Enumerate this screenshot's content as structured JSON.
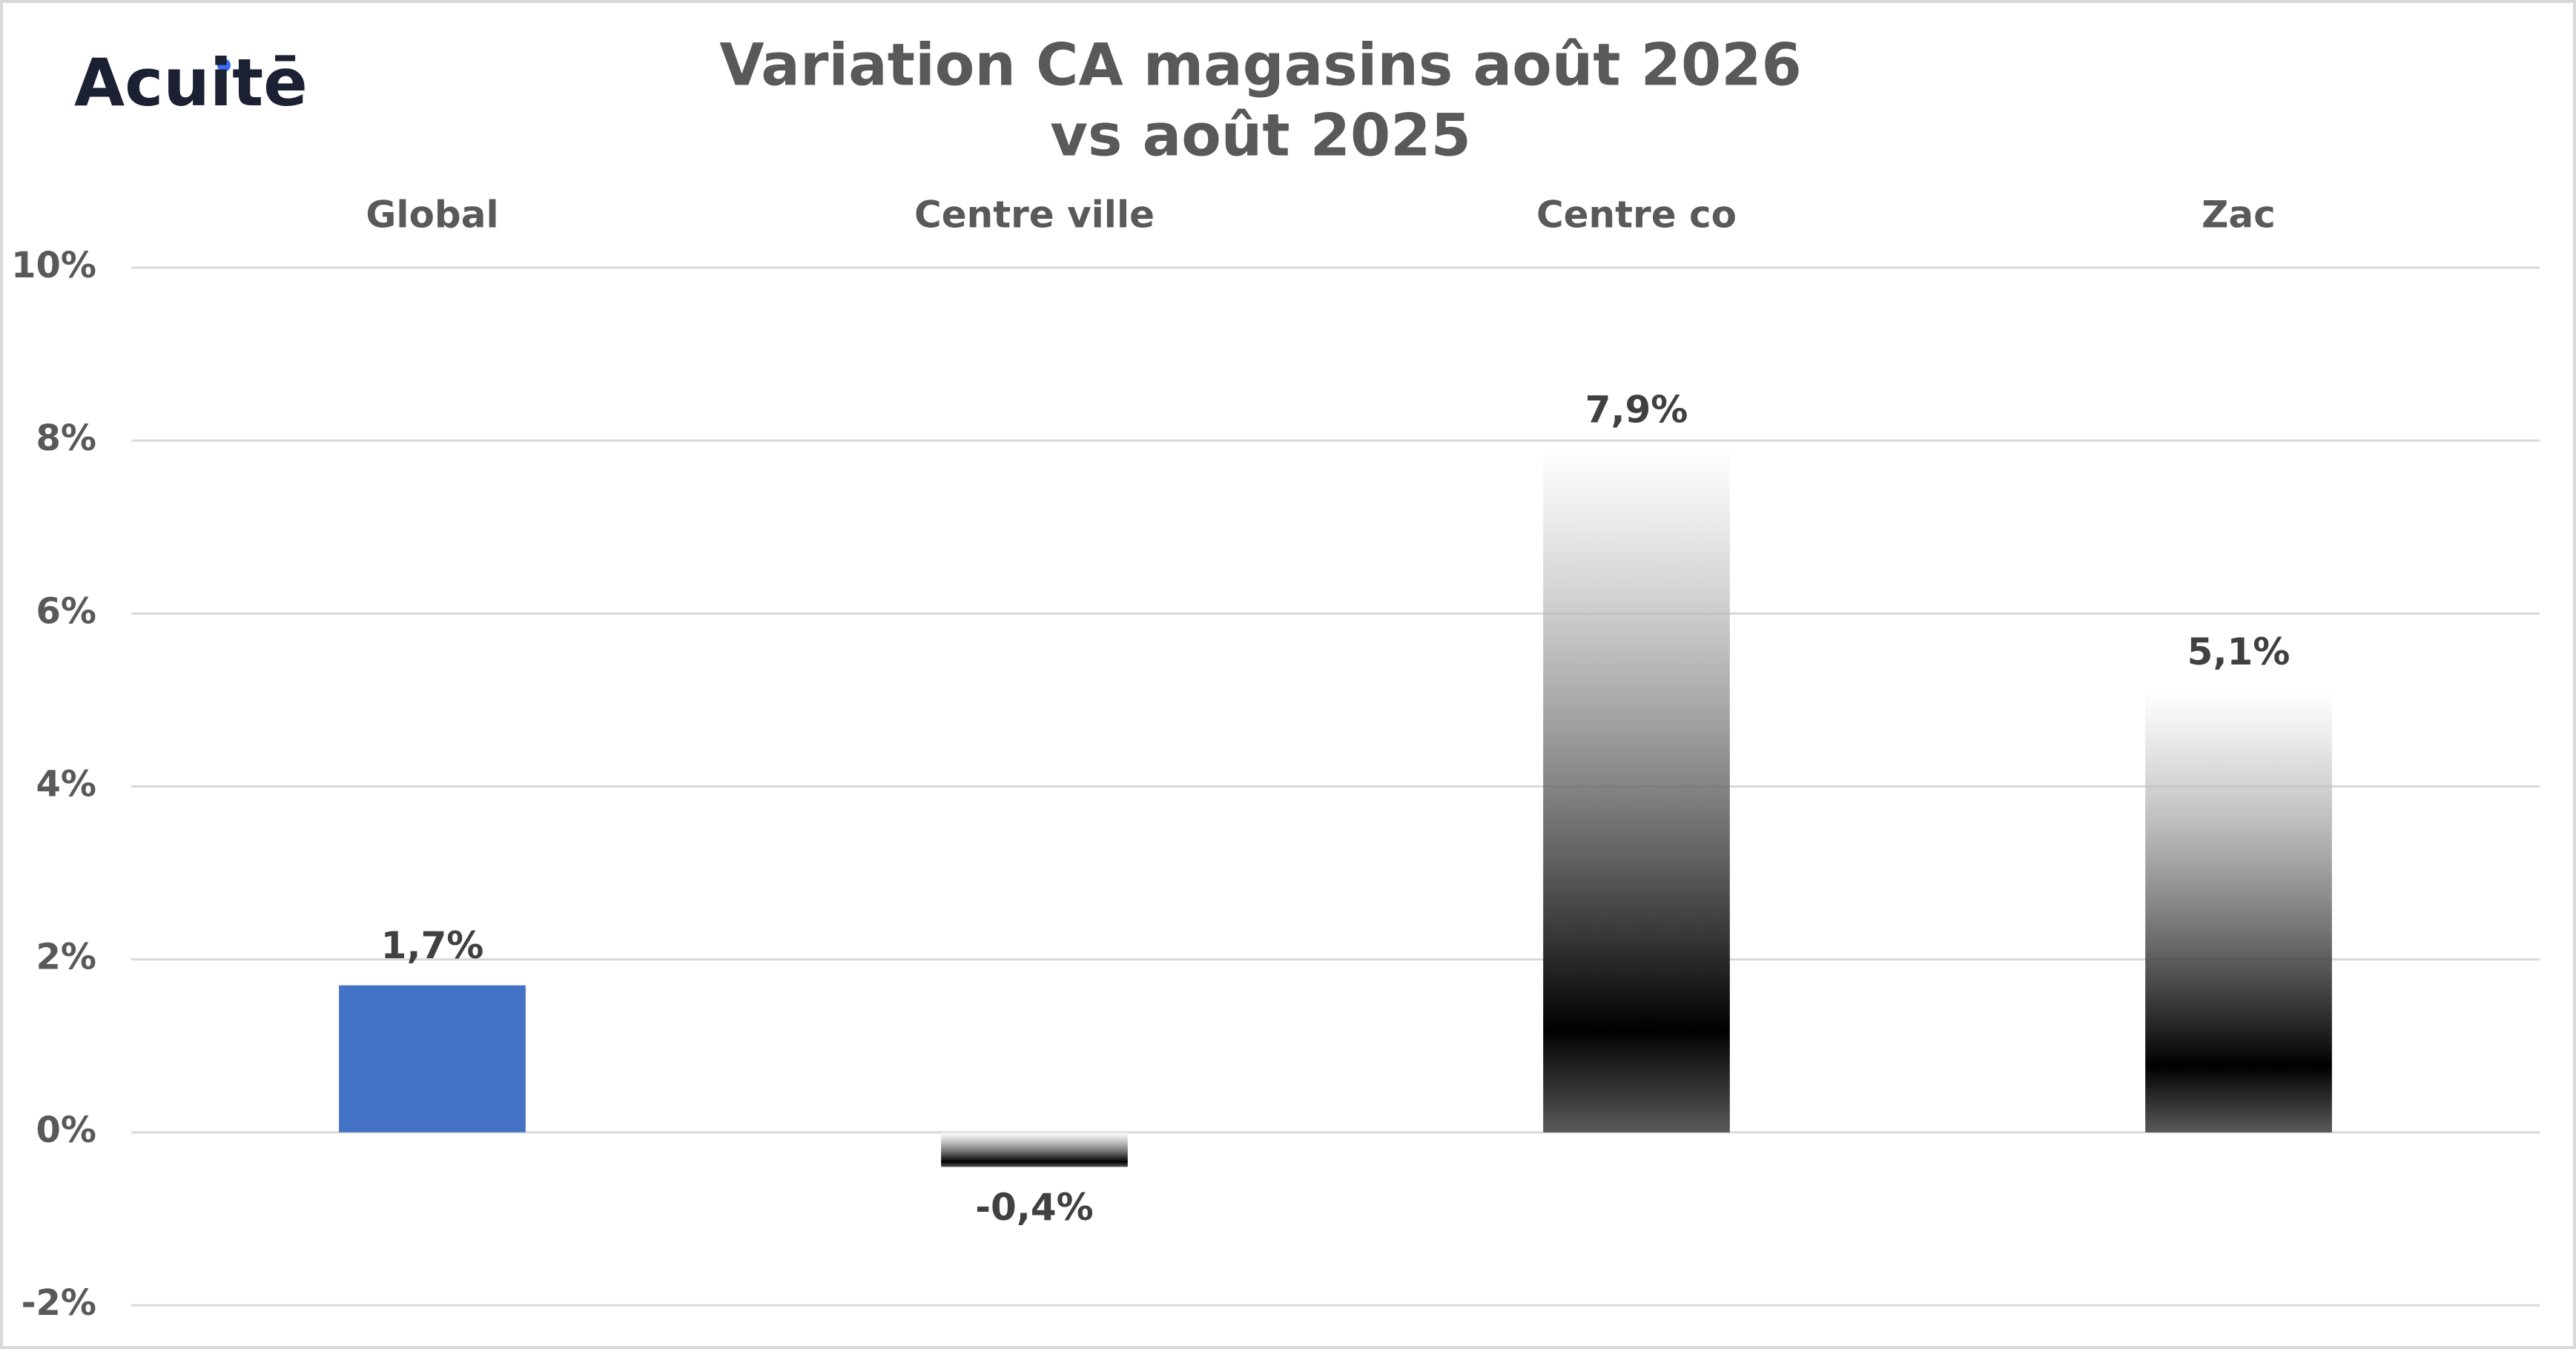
{
  "chart_data": {
    "type": "bar",
    "logo": "Acuitē",
    "title": [
      "Variation CA magasins août 2026",
      "vs août 2025"
    ],
    "categories": [
      "Global",
      "Centre ville",
      "Centre co",
      "Zac"
    ],
    "values": [
      1.7,
      -0.4,
      7.9,
      5.1
    ],
    "value_labels": [
      "1,7%",
      "-0,4%",
      "7,9%",
      "5,1%"
    ],
    "colors": [
      "#4472c4",
      "#a9bfe6",
      "#a9bfe6",
      "#a9bfe6"
    ],
    "fill_styles": [
      "solid",
      "gradient",
      "gradient",
      "gradient"
    ],
    "ylim": [
      -2,
      10
    ],
    "yticks": [
      {
        "value": -2,
        "label": "-2%"
      },
      {
        "value": 0,
        "label": "0%"
      },
      {
        "value": 2,
        "label": "2%"
      },
      {
        "value": 4,
        "label": "4%"
      },
      {
        "value": 6,
        "label": "6%"
      },
      {
        "value": 8,
        "label": "8%"
      },
      {
        "value": 10,
        "label": "10%"
      }
    ],
    "grid": true
  }
}
